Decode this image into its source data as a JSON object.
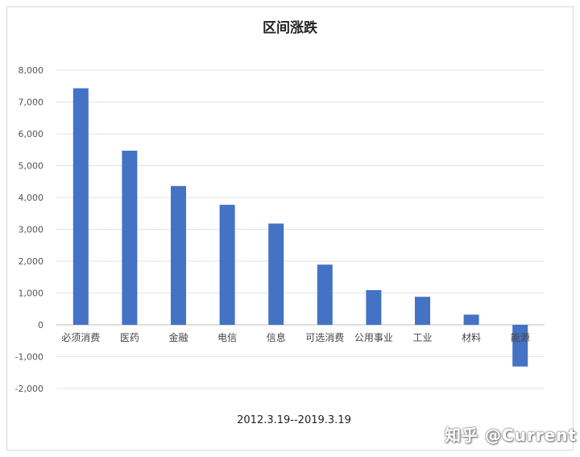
{
  "chart_data": {
    "type": "bar",
    "title": "区间涨跌",
    "note": "2012.3.19--2019.3.19",
    "categories": [
      "必须消费",
      "医药",
      "金融",
      "电信",
      "信息",
      "可选消费",
      "公用事业",
      "工业",
      "材料",
      "能源"
    ],
    "values": [
      7430,
      5470,
      4360,
      3770,
      3180,
      1890,
      1090,
      880,
      320,
      -1310
    ],
    "ylim": [
      -2000,
      8000
    ],
    "yticks": [
      "8,000",
      "7,000",
      "6,000",
      "5,000",
      "4,000",
      "3,000",
      "2,000",
      "1,000",
      "0",
      "-1,000",
      "-2,000"
    ],
    "ytick_values": [
      8000,
      7000,
      6000,
      5000,
      4000,
      3000,
      2000,
      1000,
      0,
      -1000,
      -2000
    ],
    "bar_color": "#4472c4",
    "grid": true,
    "legend": "none"
  },
  "watermark": "知乎 @Current"
}
